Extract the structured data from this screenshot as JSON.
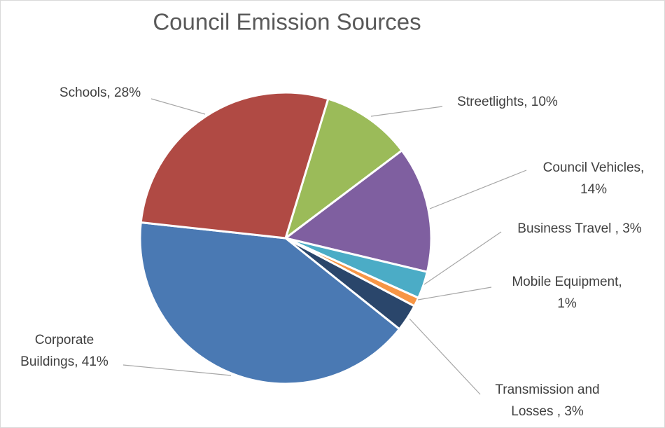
{
  "chart_data": {
    "type": "pie",
    "title": "Council Emission Sources",
    "values": [
      10,
      14,
      3,
      1,
      3,
      41,
      28
    ],
    "value_labels": [
      [
        "Streetlights, 10%"
      ],
      [
        "Council Vehicles,",
        "14%"
      ],
      [
        "Business Travel , 3%"
      ],
      [
        "Mobile Equipment,",
        "1%"
      ],
      [
        "Transmission and",
        "Losses , 3%"
      ],
      [
        "Corporate",
        "Buildings, 41%"
      ],
      [
        "Schools, 28%"
      ]
    ],
    "colors": [
      "#9bbb59",
      "#7f5fa0",
      "#4bacc6",
      "#f79646",
      "#2a466b",
      "#4a79b3",
      "#b04a44"
    ]
  }
}
